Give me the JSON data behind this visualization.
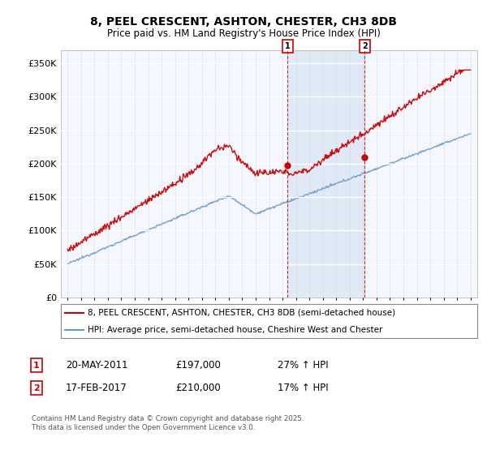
{
  "title_line1": "8, PEEL CRESCENT, ASHTON, CHESTER, CH3 8DB",
  "title_line2": "Price paid vs. HM Land Registry's House Price Index (HPI)",
  "ytick_values": [
    0,
    50000,
    100000,
    150000,
    200000,
    250000,
    300000,
    350000
  ],
  "ylim": [
    0,
    370000
  ],
  "xlim_start": 1994.5,
  "xlim_end": 2025.5,
  "plot_bg_color": "#f5f7ff",
  "red_line_color": "#cc0000",
  "blue_line_color": "#6699cc",
  "shade_color": "#dce8f5",
  "marker1_x": 2011.38,
  "marker1_y": 197000,
  "marker2_x": 2017.12,
  "marker2_y": 210000,
  "legend_line1": "8, PEEL CRESCENT, ASHTON, CHESTER, CH3 8DB (semi-detached house)",
  "legend_line2": "HPI: Average price, semi-detached house, Cheshire West and Chester",
  "annotation1_date": "20-MAY-2011",
  "annotation1_price": "£197,000",
  "annotation1_hpi": "27% ↑ HPI",
  "annotation2_date": "17-FEB-2017",
  "annotation2_price": "£210,000",
  "annotation2_hpi": "17% ↑ HPI",
  "footer": "Contains HM Land Registry data © Crown copyright and database right 2025.\nThis data is licensed under the Open Government Licence v3.0."
}
